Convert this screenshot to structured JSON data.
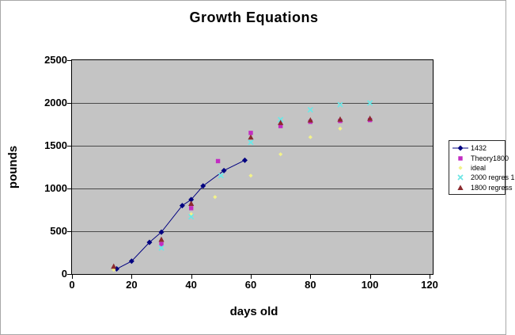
{
  "chart_data": {
    "type": "scatter",
    "title": "Growth Equations",
    "xlabel": "days old",
    "ylabel": "pounds",
    "xlim": [
      0,
      120
    ],
    "ylim": [
      0,
      2500
    ],
    "xticks": [
      0,
      20,
      40,
      60,
      80,
      100,
      120
    ],
    "yticks": [
      0,
      500,
      1000,
      1500,
      2000,
      2500
    ],
    "grid": "horizontal-only",
    "plot_bg_color": "#c4c4c4",
    "gridline_color": "#4a4a4a",
    "legend_position": "right-outside",
    "series": [
      {
        "name": "1432",
        "marker": "diamond",
        "color": "#000080",
        "line": true,
        "points": [
          [
            15,
            60
          ],
          [
            20,
            150
          ],
          [
            26,
            370
          ],
          [
            30,
            490
          ],
          [
            37,
            800
          ],
          [
            40,
            870
          ],
          [
            44,
            1030
          ],
          [
            51,
            1210
          ],
          [
            58,
            1330
          ]
        ]
      },
      {
        "name": "Theory1800",
        "marker": "square",
        "color": "#c22cc2",
        "line": false,
        "points": [
          [
            30,
            350
          ],
          [
            40,
            770
          ],
          [
            49,
            1320
          ],
          [
            60,
            1650
          ],
          [
            70,
            1730
          ],
          [
            80,
            1780
          ],
          [
            90,
            1790
          ],
          [
            100,
            1800
          ]
        ]
      },
      {
        "name": "ideal",
        "marker": "diamond-small",
        "color": "#f2f28a",
        "line": false,
        "points": [
          [
            14,
            50
          ],
          [
            40,
            700
          ],
          [
            48,
            900
          ],
          [
            60,
            1150
          ],
          [
            70,
            1400
          ],
          [
            80,
            1600
          ],
          [
            90,
            1700
          ]
        ]
      },
      {
        "name": "2000 regres 1",
        "marker": "xstar",
        "color": "#6ee6e6",
        "line": false,
        "points": [
          [
            30,
            305
          ],
          [
            40,
            670
          ],
          [
            50,
            1150
          ],
          [
            60,
            1540
          ],
          [
            70,
            1805
          ],
          [
            80,
            1920
          ],
          [
            90,
            1980
          ],
          [
            100,
            2000
          ]
        ]
      },
      {
        "name": "1800 regress",
        "marker": "triangle",
        "color": "#8b2a2e",
        "line": false,
        "points": [
          [
            14,
            90
          ],
          [
            30,
            405
          ],
          [
            40,
            825
          ],
          [
            60,
            1600
          ],
          [
            70,
            1770
          ],
          [
            80,
            1800
          ],
          [
            90,
            1810
          ],
          [
            100,
            1820
          ]
        ]
      }
    ]
  }
}
